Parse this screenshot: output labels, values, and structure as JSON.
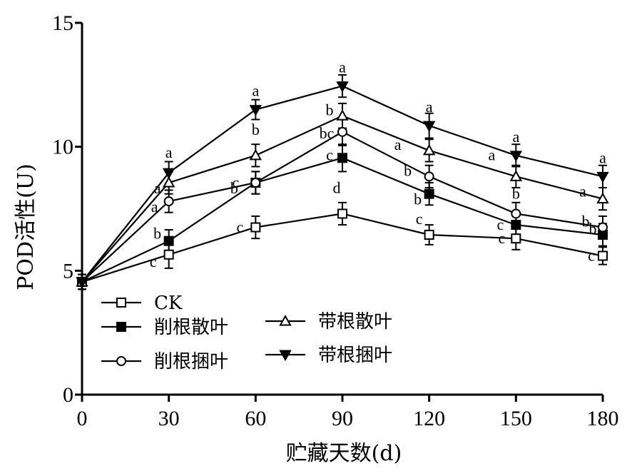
{
  "chart_data": {
    "type": "line",
    "title": "",
    "xlabel": "贮藏天数(d)",
    "ylabel": "POD活性(U)",
    "x": [
      0,
      30,
      60,
      90,
      120,
      150,
      180
    ],
    "x_ticks": [
      "0",
      "30",
      "60",
      "90",
      "120",
      "150",
      "180"
    ],
    "y_ticks": [
      "0",
      "5",
      "10",
      "15"
    ],
    "xlim": [
      0,
      180
    ],
    "ylim": [
      0,
      15
    ],
    "grid": false,
    "legend_position": "lower-left",
    "series": [
      {
        "name": "CK",
        "marker": "open-square",
        "values": [
          4.55,
          5.65,
          6.75,
          7.3,
          6.45,
          6.3,
          5.6
        ],
        "errors": [
          0.3,
          0.55,
          0.45,
          0.45,
          0.4,
          0.45,
          0.35
        ],
        "letters": [
          "",
          "c",
          "c",
          "d",
          "c",
          "c",
          "c"
        ]
      },
      {
        "name": "削根散叶",
        "marker": "filled-square",
        "values": [
          4.55,
          6.2,
          8.55,
          9.55,
          8.1,
          6.85,
          6.45
        ],
        "errors": [
          0.3,
          0.45,
          0.45,
          0.55,
          0.45,
          0.45,
          0.45
        ],
        "letters": [
          "",
          "b",
          "c",
          "c",
          "b",
          "c",
          "b"
        ]
      },
      {
        "name": "削根捆叶",
        "marker": "open-circle",
        "values": [
          4.55,
          7.8,
          8.55,
          10.6,
          8.8,
          7.3,
          6.75
        ],
        "errors": [
          0.3,
          0.45,
          0.45,
          0.55,
          0.45,
          0.45,
          0.45
        ],
        "letters": [
          "",
          "a",
          "b",
          "bc",
          "b",
          "b",
          "b"
        ]
      },
      {
        "name": "带根散叶",
        "marker": "open-triangle-up",
        "values": [
          4.55,
          8.55,
          9.65,
          11.25,
          9.85,
          8.8,
          7.9
        ],
        "errors": [
          0.3,
          0.45,
          0.45,
          0.5,
          0.45,
          0.45,
          0.45
        ],
        "letters": [
          "",
          "a",
          "b",
          "b",
          "a",
          "a",
          "a"
        ]
      },
      {
        "name": "带根捆叶",
        "marker": "filled-triangle-down",
        "values": [
          4.55,
          8.95,
          11.5,
          12.45,
          10.85,
          9.65,
          8.8
        ],
        "errors": [
          0.3,
          0.45,
          0.4,
          0.45,
          0.5,
          0.45,
          0.45
        ],
        "letters": [
          "",
          "a",
          "a",
          "a",
          "a",
          "a",
          "a"
        ]
      }
    ]
  }
}
